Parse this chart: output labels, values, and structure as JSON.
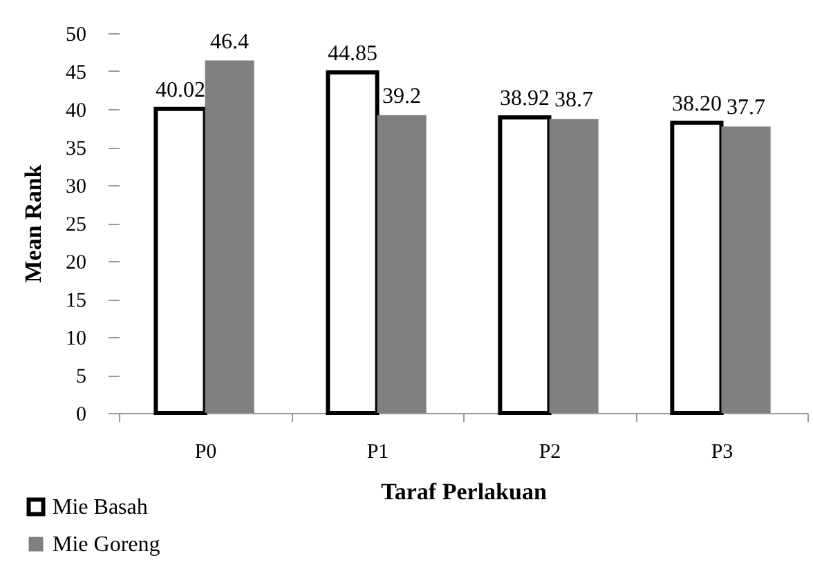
{
  "chart_data": {
    "type": "bar",
    "xlabel": "Taraf Perlakuan",
    "ylabel": "Mean Rank",
    "categories": [
      "P0",
      "P1",
      "P2",
      "P3"
    ],
    "series": [
      {
        "name": "Mie Basah",
        "color": "#ffffff",
        "values": [
          40.02,
          44.85,
          38.92,
          38.2
        ],
        "value_labels": [
          "40.02",
          "44.85",
          "38.92",
          "38.20"
        ]
      },
      {
        "name": "Mie Goreng",
        "color": "#808080",
        "values": [
          46.4,
          39.2,
          38.7,
          37.7
        ],
        "value_labels": [
          "46.4",
          "39.2",
          "38.7",
          "37.7"
        ]
      }
    ],
    "ylim": [
      0,
      50
    ],
    "yticks": [
      0,
      5,
      10,
      15,
      20,
      25,
      30,
      35,
      40,
      45,
      50
    ],
    "grid": false,
    "legend": "bottom left"
  }
}
